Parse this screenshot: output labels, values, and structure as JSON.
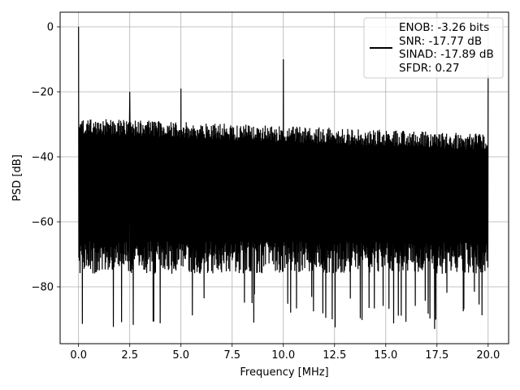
{
  "chart_data": {
    "type": "line",
    "xlabel": "Frequency [MHz]",
    "ylabel": "PSD [dB]",
    "xlim": [
      -0.9,
      21.0
    ],
    "ylim": [
      -97.5,
      4.5
    ],
    "xticks": [
      0.0,
      2.5,
      5.0,
      7.5,
      10.0,
      12.5,
      15.0,
      17.5,
      20.0
    ],
    "xtick_labels": [
      "0.0",
      "2.5",
      "5.0",
      "7.5",
      "10.0",
      "12.5",
      "15.0",
      "17.5",
      "20.0"
    ],
    "yticks": [
      0,
      -20,
      -40,
      -60,
      -80
    ],
    "ytick_labels": [
      "0",
      "−20",
      "−40",
      "−60",
      "−80"
    ],
    "grid": true,
    "legend_position": "top-right",
    "legend_entries": [
      "ENOB: -3.26 bits",
      "SNR: -17.77 dB",
      "SINAD: -17.89 dB",
      "SFDR: 0.27"
    ],
    "series": [
      {
        "color": "#000000",
        "x_range": [
          0,
          20
        ],
        "noise_floor_top": [
          -28,
          -33
        ],
        "noise_floor_bottom_typical": -70,
        "noise_floor_min": -93,
        "peaks": [
          {
            "x": 0.0,
            "y": 0
          },
          {
            "x": 2.5,
            "y": -20
          },
          {
            "x": 5.0,
            "y": -19
          },
          {
            "x": 10.0,
            "y": -10
          },
          {
            "x": 20.0,
            "y": -15
          }
        ]
      }
    ]
  }
}
